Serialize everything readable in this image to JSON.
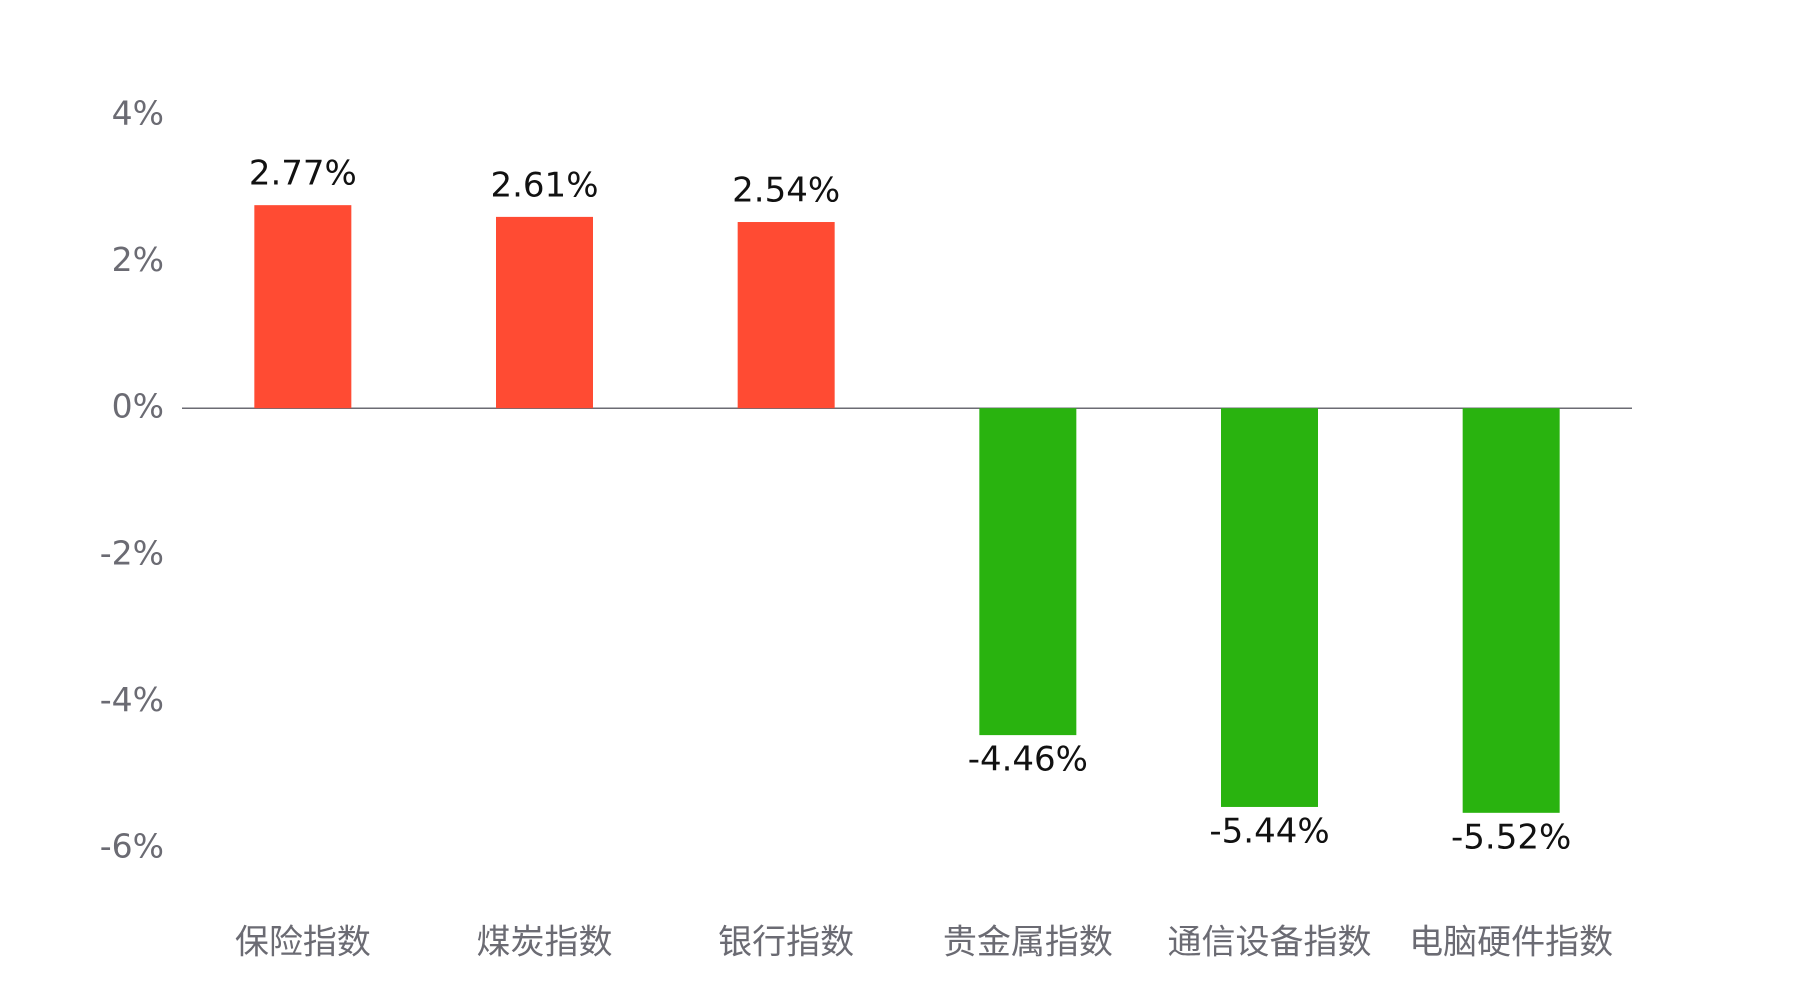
{
  "chart_data": {
    "type": "bar",
    "categories": [
      "保险指数",
      "煤炭指数",
      "银行指数",
      "贵金属指数",
      "通信设备指数",
      "电脑硬件指数"
    ],
    "values": [
      2.77,
      2.61,
      2.54,
      -4.46,
      -5.44,
      -5.52
    ],
    "value_labels": [
      "2.77%",
      "2.61%",
      "2.54%",
      "-4.46%",
      "-5.44%",
      "-5.52%"
    ],
    "positive_color": "#ff4b33",
    "negative_color": "#29b30f",
    "ylim": [
      -6,
      4
    ],
    "yticks": [
      {
        "value": -6,
        "label": "-6%"
      },
      {
        "value": -4,
        "label": "-4%"
      },
      {
        "value": -2,
        "label": "-2%"
      },
      {
        "value": 0,
        "label": "0%"
      },
      {
        "value": 2,
        "label": "2%"
      },
      {
        "value": 4,
        "label": "4%"
      }
    ],
    "grid": false
  }
}
